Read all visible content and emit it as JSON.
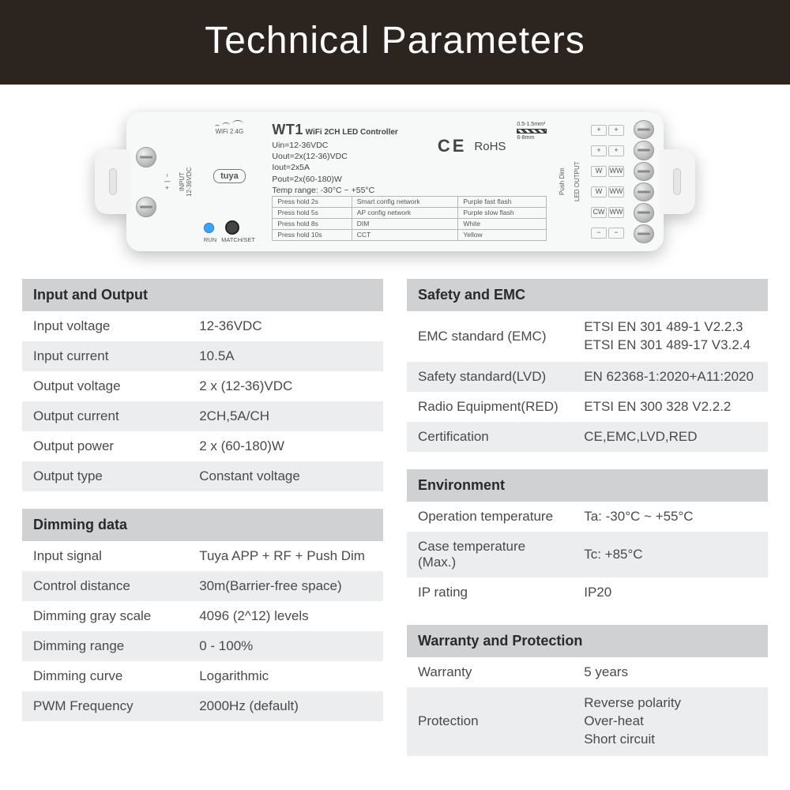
{
  "header": {
    "title": "Technical Parameters"
  },
  "device": {
    "model": "WT1",
    "subtitle": "WiFi 2CH LED Controller",
    "specs": [
      "Uin=12-36VDC",
      "Uout=2x(12-36)VDC",
      "Iout=2x5A",
      "Pout=2x(60-180)W",
      "Temp range: -30°C ~ +55°C"
    ],
    "ce": "CE",
    "rohs": "RoHS",
    "wire_top": "0.5-1.5mm²",
    "wire_bot": "6-8mm",
    "input_label": "INPUT",
    "input_range": "12-36VDC",
    "wifi_label": "WiFi 2.4G",
    "tuya": "tuya",
    "run": "RUN",
    "match": "MATCH/SET",
    "led_output": "LED OUTPUT",
    "push_dim": "Push Dim",
    "out_syms_top": [
      "+",
      "+"
    ],
    "out_chan": [
      [
        "W",
        "WW"
      ],
      [
        "W",
        "WW"
      ],
      [
        "CW",
        "WW"
      ]
    ],
    "out_minus": [
      "−",
      "−"
    ],
    "cfg": [
      [
        "Press hold 2s",
        "Smart config network",
        "Purple fast flash"
      ],
      [
        "Press hold 5s",
        "AP config network",
        "Purple slow flash"
      ],
      [
        "Press hold 8s",
        "DIM",
        "White"
      ],
      [
        "Press hold 10s",
        "CCT",
        "Yellow"
      ]
    ]
  },
  "tables": {
    "io": {
      "title": "Input and Output",
      "rows": [
        [
          "Input voltage",
          "12-36VDC"
        ],
        [
          "Input current",
          "10.5A"
        ],
        [
          "Output voltage",
          "2 x (12-36)VDC"
        ],
        [
          "Output current",
          "2CH,5A/CH"
        ],
        [
          "Output power",
          "2 x (60-180)W"
        ],
        [
          "Output type",
          "Constant voltage"
        ]
      ]
    },
    "dimming": {
      "title": "Dimming data",
      "rows": [
        [
          "Input signal",
          "Tuya APP + RF + Push Dim"
        ],
        [
          "Control distance",
          "30m(Barrier-free space)"
        ],
        [
          "Dimming gray scale",
          "4096 (2^12) levels"
        ],
        [
          "Dimming range",
          "0 - 100%"
        ],
        [
          "Dimming curve",
          "Logarithmic"
        ],
        [
          "PWM Frequency",
          "2000Hz (default)"
        ]
      ]
    },
    "safety": {
      "title": "Safety and EMC",
      "rows": [
        [
          "EMC standard (EMC)",
          "ETSI EN 301 489-1 V2.2.3\nETSI EN 301 489-17 V3.2.4"
        ],
        [
          "Safety standard(LVD)",
          "EN 62368-1:2020+A11:2020"
        ],
        [
          "Radio Equipment(RED)",
          "ETSI EN 300 328 V2.2.2"
        ],
        [
          "Certification",
          "CE,EMC,LVD,RED"
        ]
      ]
    },
    "env": {
      "title": "Environment",
      "rows": [
        [
          "Operation temperature",
          "Ta: -30°C ~ +55°C"
        ],
        [
          "Case temperature (Max.)",
          "Tc: +85°C"
        ],
        [
          "IP rating",
          "IP20"
        ]
      ]
    },
    "warranty": {
      "title": "Warranty and Protection",
      "rows": [
        [
          "Warranty",
          "5 years"
        ],
        [
          "Protection",
          "Reverse polarity\nOver-heat\nShort circuit"
        ]
      ]
    }
  },
  "style": {
    "header_bg": "#2b241f",
    "header_fg": "#ffffff",
    "th_bg": "#cfd1d2",
    "alt_bg": "#ecedee",
    "row_bg": "#ffffff",
    "text": "#4a4a4a"
  }
}
